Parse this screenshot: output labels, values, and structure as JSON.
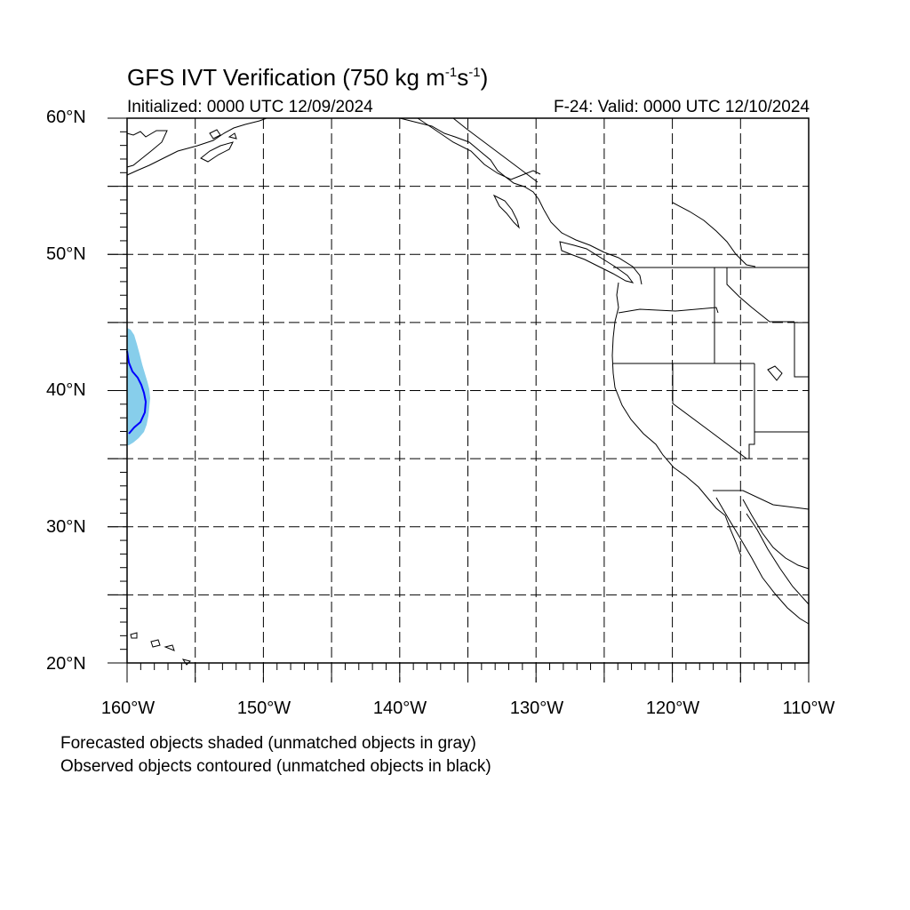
{
  "title": {
    "main": "GFS IVT Verification (750 kg m",
    "sup1": "-1",
    "mid": "s",
    "sup2": "-1",
    "end": ")"
  },
  "init_label": "Initialized: 0000 UTC 12/09/2024",
  "valid_label": "F-24: Valid: 0000 UTC 12/10/2024",
  "lat_labels": [
    "60°N",
    "50°N",
    "40°N",
    "30°N",
    "20°N"
  ],
  "lon_labels": [
    "160°W",
    "150°W",
    "140°W",
    "130°W",
    "120°W",
    "110°W"
  ],
  "notes": [
    "Forecasted objects shaded (unmatched objects in gray)",
    "Observed objects contoured (unmatched objects in black)"
  ],
  "map": {
    "lon_range": [
      -160,
      -110
    ],
    "lat_range": [
      20,
      60
    ],
    "grid_interval_deg": 5,
    "colors": {
      "forecast_fill": "#87ceeb",
      "observed_contour": "#0000ff",
      "coast": "#000000",
      "grid": "#000000"
    }
  }
}
